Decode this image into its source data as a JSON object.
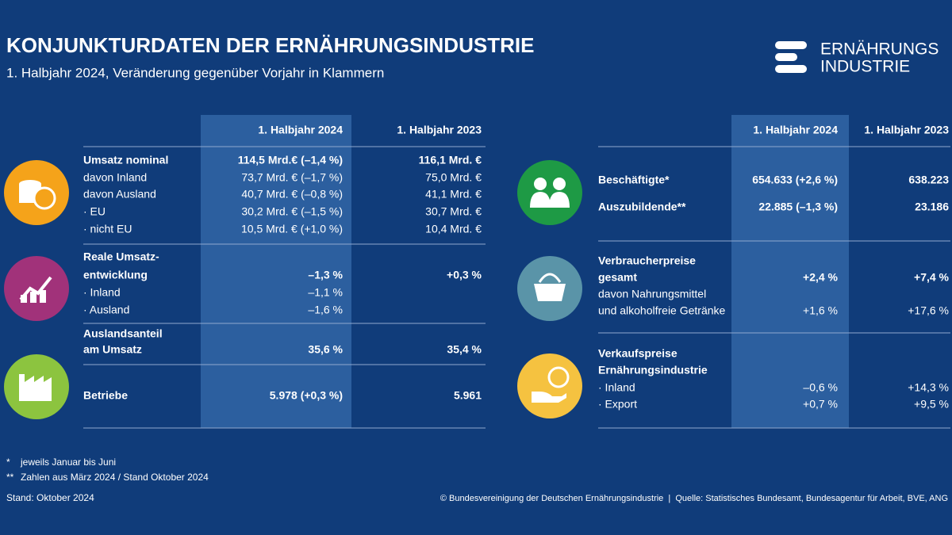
{
  "header": {
    "title": "KONJUNKTURDATEN DER ERNÄHRUNGSINDUSTRIE",
    "subtitle": "1. Halbjahr 2024, Veränderung gegenüber Vorjahr in Klammern"
  },
  "logo": {
    "line1": "ERNÄHRUNGS",
    "line2": "INDUSTRIE"
  },
  "left_table": {
    "columns": [
      "1. Halbjahr 2024",
      "1. Halbjahr 2023"
    ],
    "rows": [
      {
        "label": "Umsatz nominal",
        "h2024": "114,5 Mrd.€ (–1,4 %)",
        "h2023": "116,1 Mrd. €",
        "emphasis": true
      },
      {
        "label": "davon Inland",
        "h2024": "73,7 Mrd. € (–1,7 %)",
        "h2023": "75,0 Mrd. €",
        "emphasis": false
      },
      {
        "label": "davon Ausland",
        "h2024": "40,7 Mrd. € (–0,8 %)",
        "h2023": "41,1 Mrd. €",
        "emphasis": false
      },
      {
        "label": "· EU",
        "h2024": "30,2 Mrd. € (–1,5 %)",
        "h2023": "30,7 Mrd. €",
        "emphasis": false
      },
      {
        "label": "· nicht EU",
        "h2024": "10,5 Mrd. € (+1,0 %)",
        "h2023": "10,4 Mrd. €",
        "emphasis": false
      },
      {
        "label": "Reale Umsatz-",
        "h2024": null,
        "h2023": null,
        "emphasis": true
      },
      {
        "label": "entwicklung",
        "h2024": "–1,3 %",
        "h2023": "+0,3 %",
        "emphasis": true
      },
      {
        "label": "· Inland",
        "h2024": "–1,1 %",
        "h2023": null,
        "emphasis": false
      },
      {
        "label": "· Ausland",
        "h2024": "–1,6 %",
        "h2023": null,
        "emphasis": false
      },
      {
        "label": "Auslandsanteil",
        "h2024": null,
        "h2023": null,
        "emphasis": true
      },
      {
        "label": "am Umsatz",
        "h2024": "35,6 %",
        "h2023": "35,4 %",
        "emphasis": true
      },
      {
        "label": "Betriebe",
        "h2024": "5.978 (+0,3 %)",
        "h2023": "5.961",
        "emphasis": true
      }
    ]
  },
  "right_table": {
    "columns": [
      "1. Halbjahr 2024",
      "1. Halbjahr 2023"
    ],
    "rows": [
      {
        "label": "Beschäftigte*",
        "h2024": "654.633 (+2,6 %)",
        "h2023": "638.223",
        "emphasis": true
      },
      {
        "label": "Auszubildende**",
        "h2024": "22.885 (–1,3 %)",
        "h2023": "23.186",
        "emphasis": true
      },
      {
        "label": "Verbraucherpreise",
        "h2024": null,
        "h2023": null,
        "emphasis": true
      },
      {
        "label": "gesamt",
        "h2024": "+2,4 %",
        "h2023": "+7,4 %",
        "emphasis": true
      },
      {
        "label": "davon Nahrungsmittel",
        "h2024": null,
        "h2023": null,
        "emphasis": false
      },
      {
        "label": "und alkoholfreie Getränke",
        "h2024": "+1,6 %",
        "h2023": "+17,6 %",
        "emphasis": false
      },
      {
        "label": "Verkaufspreise",
        "h2024": null,
        "h2023": null,
        "emphasis": true
      },
      {
        "label": "Ernährungsindustrie",
        "h2024": null,
        "h2023": null,
        "emphasis": true
      },
      {
        "label": "· Inland",
        "h2024": "–0,6 %",
        "h2023": "+14,3 %",
        "emphasis": false
      },
      {
        "label": "· Export",
        "h2024": "+0,7 %",
        "h2023": "+9,5 %",
        "emphasis": false
      }
    ]
  },
  "footnotes": [
    {
      "mark": "*",
      "text": "jeweils Januar bis Juni"
    },
    {
      "mark": "**",
      "text": "Zahlen aus März 2024 / Stand Oktober 2024"
    }
  ],
  "stand": "Stand: Oktober 2024",
  "source": "© Bundesvereinigung der Deutschen Ernährungsindustrie  |  Quelle: Statistisches Bundesamt, Bundesagentur für Arbeit, BVE, ANG"
}
